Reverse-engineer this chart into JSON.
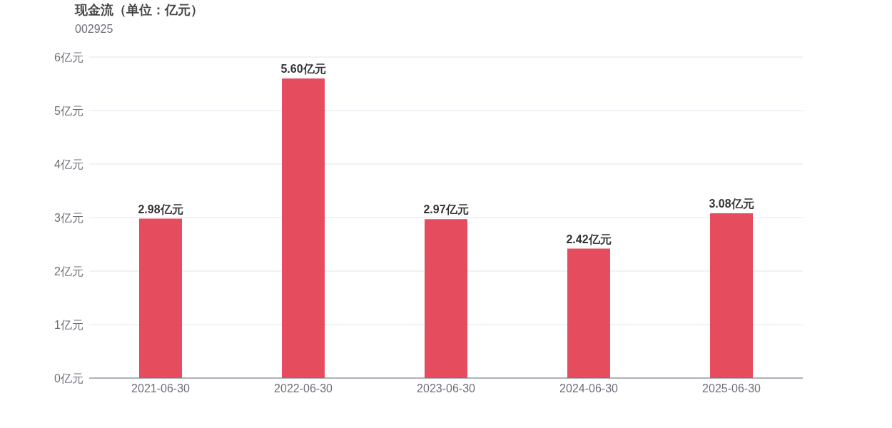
{
  "chart_data": {
    "type": "bar",
    "title": "现金流（单位：亿元）",
    "subtitle": "002925",
    "categories": [
      "2021-06-30",
      "2022-06-30",
      "2023-06-30",
      "2024-06-30",
      "2025-06-30"
    ],
    "values": [
      2.98,
      5.6,
      2.97,
      2.42,
      3.08
    ],
    "value_labels": [
      "2.98亿元",
      "5.60亿元",
      "2.97亿元",
      "2.42亿元",
      "3.08亿元"
    ],
    "color": "#e54c5e",
    "ylim": [
      0,
      6
    ],
    "yticks": [
      {
        "value": 0,
        "label": "0亿元"
      },
      {
        "value": 1,
        "label": "1亿元"
      },
      {
        "value": 2,
        "label": "2亿元"
      },
      {
        "value": 3,
        "label": "3亿元"
      },
      {
        "value": 4,
        "label": "4亿元"
      },
      {
        "value": 5,
        "label": "5亿元"
      },
      {
        "value": 6,
        "label": "6亿元"
      }
    ],
    "grid": "y"
  }
}
